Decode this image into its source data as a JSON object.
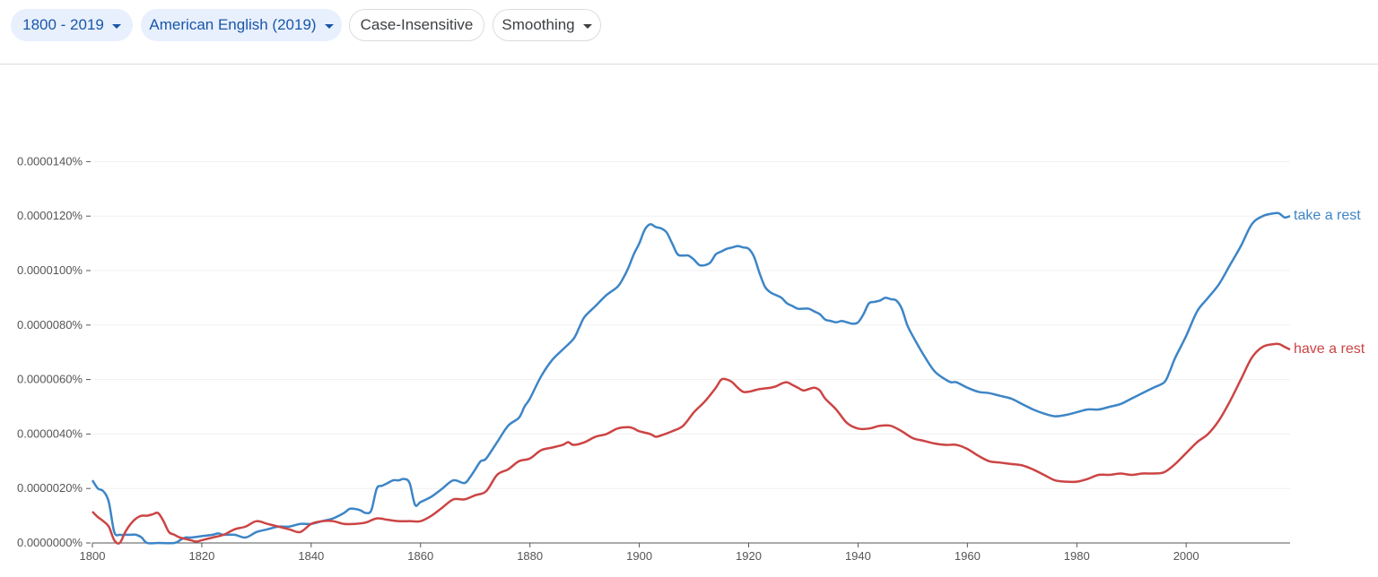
{
  "toolbar": {
    "year_range": "1800 - 2019",
    "corpus": "American English (2019)",
    "case": "Case-Insensitive",
    "smoothing": "Smoothing"
  },
  "chart_data": {
    "type": "line",
    "title": "",
    "xlabel": "",
    "ylabel": "",
    "xlim": [
      1800,
      2019
    ],
    "ylim": [
      0,
      1.5e-05
    ],
    "x_ticks": [
      1800,
      1820,
      1840,
      1860,
      1880,
      1900,
      1920,
      1940,
      1960,
      1980,
      2000
    ],
    "y_ticks": [
      {
        "value": 0.0,
        "label": "0.0000000%"
      },
      {
        "value": 2e-06,
        "label": "0.0000020%"
      },
      {
        "value": 4e-06,
        "label": "0.0000040%"
      },
      {
        "value": 6e-06,
        "label": "0.0000060%"
      },
      {
        "value": 8e-06,
        "label": "0.0000080%"
      },
      {
        "value": 1e-05,
        "label": "0.0000100%"
      },
      {
        "value": 1.2e-05,
        "label": "0.0000120%"
      },
      {
        "value": 1.4e-05,
        "label": "0.0000140%"
      }
    ],
    "grid": true,
    "legend": "line-end labels",
    "series": [
      {
        "name": "take a rest",
        "color": "#3d85c6",
        "points": [
          [
            1800,
            2.3e-06
          ],
          [
            1801,
            2e-06
          ],
          [
            1802,
            1.9e-06
          ],
          [
            1803,
            1.5e-06
          ],
          [
            1804,
            4e-07
          ],
          [
            1805,
            3e-07
          ],
          [
            1806,
            3e-07
          ],
          [
            1807,
            3e-07
          ],
          [
            1808,
            3e-07
          ],
          [
            1809,
            2e-07
          ],
          [
            1810,
            0.0
          ],
          [
            1812,
            0.0
          ],
          [
            1815,
            0.0
          ],
          [
            1816,
            1e-07
          ],
          [
            1817,
            2e-07
          ],
          [
            1818,
            2e-07
          ],
          [
            1820,
            2.5e-07
          ],
          [
            1822,
            3e-07
          ],
          [
            1823,
            3.5e-07
          ],
          [
            1824,
            3e-07
          ],
          [
            1826,
            3e-07
          ],
          [
            1828,
            2e-07
          ],
          [
            1830,
            4e-07
          ],
          [
            1832,
            5e-07
          ],
          [
            1834,
            6e-07
          ],
          [
            1836,
            6e-07
          ],
          [
            1838,
            7e-07
          ],
          [
            1840,
            7e-07
          ],
          [
            1842,
            8e-07
          ],
          [
            1844,
            9e-07
          ],
          [
            1846,
            1.1e-06
          ],
          [
            1847,
            1.25e-06
          ],
          [
            1848,
            1.25e-06
          ],
          [
            1849,
            1.2e-06
          ],
          [
            1850,
            1.1e-06
          ],
          [
            1851,
            1.2e-06
          ],
          [
            1852,
            2e-06
          ],
          [
            1853,
            2.1e-06
          ],
          [
            1854,
            2.2e-06
          ],
          [
            1855,
            2.3e-06
          ],
          [
            1856,
            2.3e-06
          ],
          [
            1857,
            2.35e-06
          ],
          [
            1858,
            2.2e-06
          ],
          [
            1859,
            1.4e-06
          ],
          [
            1860,
            1.5e-06
          ],
          [
            1862,
            1.7e-06
          ],
          [
            1864,
            2e-06
          ],
          [
            1866,
            2.3e-06
          ],
          [
            1868,
            2.2e-06
          ],
          [
            1869,
            2.4e-06
          ],
          [
            1870,
            2.7e-06
          ],
          [
            1871,
            3e-06
          ],
          [
            1872,
            3.1e-06
          ],
          [
            1874,
            3.7e-06
          ],
          [
            1876,
            4.3e-06
          ],
          [
            1878,
            4.6e-06
          ],
          [
            1879,
            5e-06
          ],
          [
            1880,
            5.3e-06
          ],
          [
            1882,
            6.1e-06
          ],
          [
            1884,
            6.7e-06
          ],
          [
            1886,
            7.1e-06
          ],
          [
            1888,
            7.5e-06
          ],
          [
            1889,
            7.9e-06
          ],
          [
            1890,
            8.3e-06
          ],
          [
            1892,
            8.7e-06
          ],
          [
            1894,
            9.1e-06
          ],
          [
            1896,
            9.4e-06
          ],
          [
            1897,
            9.7e-06
          ],
          [
            1898,
            1.01e-05
          ],
          [
            1899,
            1.06e-05
          ],
          [
            1900,
            1.1e-05
          ],
          [
            1901,
            1.15e-05
          ],
          [
            1902,
            1.17e-05
          ],
          [
            1903,
            1.16e-05
          ],
          [
            1904,
            1.155e-05
          ],
          [
            1905,
            1.14e-05
          ],
          [
            1906,
            1.1e-05
          ],
          [
            1907,
            1.06e-05
          ],
          [
            1908,
            1.055e-05
          ],
          [
            1909,
            1.055e-05
          ],
          [
            1910,
            1.04e-05
          ],
          [
            1911,
            1.02e-05
          ],
          [
            1912,
            1.02e-05
          ],
          [
            1913,
            1.03e-05
          ],
          [
            1914,
            1.06e-05
          ],
          [
            1915,
            1.07e-05
          ],
          [
            1916,
            1.08e-05
          ],
          [
            1917,
            1.085e-05
          ],
          [
            1918,
            1.09e-05
          ],
          [
            1919,
            1.085e-05
          ],
          [
            1920,
            1.08e-05
          ],
          [
            1921,
            1.05e-05
          ],
          [
            1922,
            9.9e-06
          ],
          [
            1923,
            9.4e-06
          ],
          [
            1924,
            9.2e-06
          ],
          [
            1925,
            9.1e-06
          ],
          [
            1926,
            9e-06
          ],
          [
            1927,
            8.8e-06
          ],
          [
            1928,
            8.7e-06
          ],
          [
            1929,
            8.6e-06
          ],
          [
            1930,
            8.6e-06
          ],
          [
            1931,
            8.6e-06
          ],
          [
            1932,
            8.5e-06
          ],
          [
            1933,
            8.4e-06
          ],
          [
            1934,
            8.2e-06
          ],
          [
            1935,
            8.15e-06
          ],
          [
            1936,
            8.1e-06
          ],
          [
            1937,
            8.15e-06
          ],
          [
            1938,
            8.1e-06
          ],
          [
            1939,
            8.05e-06
          ],
          [
            1940,
            8.1e-06
          ],
          [
            1941,
            8.4e-06
          ],
          [
            1942,
            8.8e-06
          ],
          [
            1943,
            8.85e-06
          ],
          [
            1944,
            8.9e-06
          ],
          [
            1945,
            9e-06
          ],
          [
            1946,
            8.95e-06
          ],
          [
            1947,
            8.9e-06
          ],
          [
            1948,
            8.6e-06
          ],
          [
            1949,
            8e-06
          ],
          [
            1950,
            7.6e-06
          ],
          [
            1952,
            6.9e-06
          ],
          [
            1954,
            6.3e-06
          ],
          [
            1956,
            6e-06
          ],
          [
            1957,
            5.9e-06
          ],
          [
            1958,
            5.9e-06
          ],
          [
            1960,
            5.7e-06
          ],
          [
            1962,
            5.55e-06
          ],
          [
            1964,
            5.5e-06
          ],
          [
            1966,
            5.4e-06
          ],
          [
            1968,
            5.3e-06
          ],
          [
            1970,
            5.1e-06
          ],
          [
            1972,
            4.9e-06
          ],
          [
            1974,
            4.75e-06
          ],
          [
            1976,
            4.65e-06
          ],
          [
            1978,
            4.7e-06
          ],
          [
            1980,
            4.8e-06
          ],
          [
            1982,
            4.9e-06
          ],
          [
            1984,
            4.9e-06
          ],
          [
            1986,
            5e-06
          ],
          [
            1988,
            5.1e-06
          ],
          [
            1990,
            5.3e-06
          ],
          [
            1992,
            5.5e-06
          ],
          [
            1994,
            5.7e-06
          ],
          [
            1996,
            5.9e-06
          ],
          [
            1997,
            6.3e-06
          ],
          [
            1998,
            6.8e-06
          ],
          [
            2000,
            7.6e-06
          ],
          [
            2002,
            8.5e-06
          ],
          [
            2004,
            9e-06
          ],
          [
            2006,
            9.5e-06
          ],
          [
            2008,
            1.02e-05
          ],
          [
            2010,
            1.09e-05
          ],
          [
            2012,
            1.17e-05
          ],
          [
            2014,
            1.2e-05
          ],
          [
            2016,
            1.21e-05
          ],
          [
            2017,
            1.21e-05
          ],
          [
            2018,
            1.195e-05
          ],
          [
            2019,
            1.2e-05
          ]
        ]
      },
      {
        "name": "have a rest",
        "color": "#cc4444",
        "points": [
          [
            1800,
            1.15e-06
          ],
          [
            1801,
            9.5e-07
          ],
          [
            1802,
            8e-07
          ],
          [
            1803,
            6e-07
          ],
          [
            1804,
            1e-07
          ],
          [
            1805,
            0.0
          ],
          [
            1806,
            4e-07
          ],
          [
            1807,
            7e-07
          ],
          [
            1808,
            9e-07
          ],
          [
            1809,
            1e-06
          ],
          [
            1810,
            1e-06
          ],
          [
            1811,
            1.05e-06
          ],
          [
            1812,
            1.1e-06
          ],
          [
            1813,
            8e-07
          ],
          [
            1814,
            4e-07
          ],
          [
            1815,
            3e-07
          ],
          [
            1816,
            2e-07
          ],
          [
            1818,
            1e-07
          ],
          [
            1819,
            5e-08
          ],
          [
            1820,
            1e-07
          ],
          [
            1822,
            2e-07
          ],
          [
            1824,
            3e-07
          ],
          [
            1826,
            5e-07
          ],
          [
            1828,
            6e-07
          ],
          [
            1830,
            8e-07
          ],
          [
            1832,
            7e-07
          ],
          [
            1834,
            6e-07
          ],
          [
            1836,
            5e-07
          ],
          [
            1838,
            4e-07
          ],
          [
            1840,
            7e-07
          ],
          [
            1842,
            8e-07
          ],
          [
            1844,
            8e-07
          ],
          [
            1846,
            7e-07
          ],
          [
            1848,
            7e-07
          ],
          [
            1850,
            7.5e-07
          ],
          [
            1852,
            9e-07
          ],
          [
            1854,
            8.5e-07
          ],
          [
            1856,
            8e-07
          ],
          [
            1858,
            8e-07
          ],
          [
            1860,
            8e-07
          ],
          [
            1862,
            1e-06
          ],
          [
            1864,
            1.3e-06
          ],
          [
            1866,
            1.6e-06
          ],
          [
            1868,
            1.6e-06
          ],
          [
            1870,
            1.75e-06
          ],
          [
            1872,
            1.9e-06
          ],
          [
            1874,
            2.5e-06
          ],
          [
            1876,
            2.7e-06
          ],
          [
            1878,
            3e-06
          ],
          [
            1880,
            3.1e-06
          ],
          [
            1882,
            3.4e-06
          ],
          [
            1884,
            3.5e-06
          ],
          [
            1886,
            3.6e-06
          ],
          [
            1887,
            3.7e-06
          ],
          [
            1888,
            3.6e-06
          ],
          [
            1890,
            3.7e-06
          ],
          [
            1892,
            3.9e-06
          ],
          [
            1894,
            4e-06
          ],
          [
            1896,
            4.2e-06
          ],
          [
            1898,
            4.25e-06
          ],
          [
            1899,
            4.2e-06
          ],
          [
            1900,
            4.1e-06
          ],
          [
            1902,
            4e-06
          ],
          [
            1903,
            3.9e-06
          ],
          [
            1904,
            3.95e-06
          ],
          [
            1906,
            4.1e-06
          ],
          [
            1908,
            4.3e-06
          ],
          [
            1910,
            4.8e-06
          ],
          [
            1912,
            5.2e-06
          ],
          [
            1914,
            5.7e-06
          ],
          [
            1915,
            6e-06
          ],
          [
            1916,
            6e-06
          ],
          [
            1917,
            5.9e-06
          ],
          [
            1918,
            5.7e-06
          ],
          [
            1919,
            5.55e-06
          ],
          [
            1920,
            5.55e-06
          ],
          [
            1921,
            5.6e-06
          ],
          [
            1922,
            5.65e-06
          ],
          [
            1924,
            5.7e-06
          ],
          [
            1925,
            5.75e-06
          ],
          [
            1926,
            5.85e-06
          ],
          [
            1927,
            5.9e-06
          ],
          [
            1928,
            5.8e-06
          ],
          [
            1929,
            5.7e-06
          ],
          [
            1930,
            5.6e-06
          ],
          [
            1931,
            5.65e-06
          ],
          [
            1932,
            5.7e-06
          ],
          [
            1933,
            5.6e-06
          ],
          [
            1934,
            5.3e-06
          ],
          [
            1936,
            4.9e-06
          ],
          [
            1938,
            4.4e-06
          ],
          [
            1940,
            4.2e-06
          ],
          [
            1942,
            4.2e-06
          ],
          [
            1944,
            4.3e-06
          ],
          [
            1946,
            4.3e-06
          ],
          [
            1948,
            4.1e-06
          ],
          [
            1950,
            3.85e-06
          ],
          [
            1952,
            3.75e-06
          ],
          [
            1954,
            3.65e-06
          ],
          [
            1956,
            3.6e-06
          ],
          [
            1958,
            3.6e-06
          ],
          [
            1960,
            3.45e-06
          ],
          [
            1962,
            3.2e-06
          ],
          [
            1964,
            3e-06
          ],
          [
            1966,
            2.95e-06
          ],
          [
            1968,
            2.9e-06
          ],
          [
            1970,
            2.85e-06
          ],
          [
            1972,
            2.7e-06
          ],
          [
            1974,
            2.5e-06
          ],
          [
            1976,
            2.3e-06
          ],
          [
            1978,
            2.25e-06
          ],
          [
            1980,
            2.25e-06
          ],
          [
            1982,
            2.35e-06
          ],
          [
            1984,
            2.5e-06
          ],
          [
            1986,
            2.5e-06
          ],
          [
            1988,
            2.55e-06
          ],
          [
            1990,
            2.5e-06
          ],
          [
            1992,
            2.55e-06
          ],
          [
            1994,
            2.55e-06
          ],
          [
            1996,
            2.6e-06
          ],
          [
            1998,
            2.9e-06
          ],
          [
            2000,
            3.3e-06
          ],
          [
            2002,
            3.7e-06
          ],
          [
            2004,
            4e-06
          ],
          [
            2006,
            4.5e-06
          ],
          [
            2008,
            5.2e-06
          ],
          [
            2010,
            6e-06
          ],
          [
            2012,
            6.8e-06
          ],
          [
            2014,
            7.2e-06
          ],
          [
            2016,
            7.3e-06
          ],
          [
            2017,
            7.3e-06
          ],
          [
            2018,
            7.2e-06
          ],
          [
            2019,
            7.1e-06
          ]
        ]
      }
    ]
  }
}
